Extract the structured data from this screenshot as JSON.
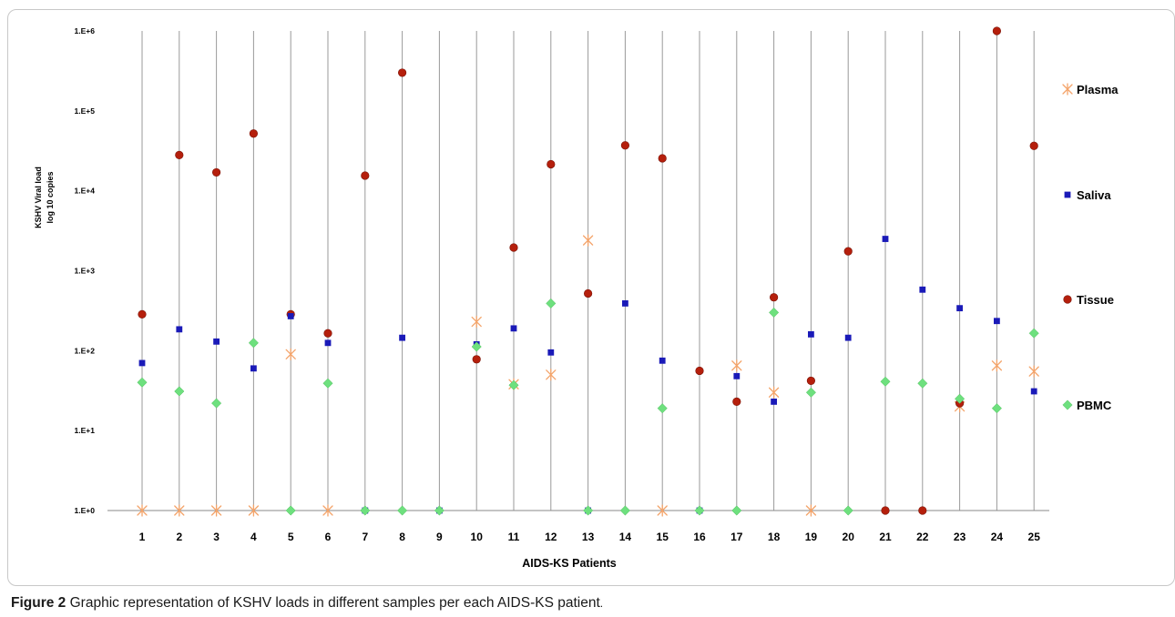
{
  "chart_data": {
    "type": "scatter",
    "xlabel": "AIDS-KS Patients",
    "ylabel": [
      "KSHV Viral load",
      "log 10 copies"
    ],
    "yscale": "log",
    "ylim": [
      1,
      1000000
    ],
    "ytick_labels": [
      "1.E+0",
      "1.E+1",
      "1.E+2",
      "1.E+3",
      "1.E+4",
      "1.E+5",
      "1.E+6"
    ],
    "categories": [
      "1",
      "2",
      "3",
      "4",
      "5",
      "6",
      "7",
      "8",
      "9",
      "10",
      "11",
      "12",
      "13",
      "14",
      "15",
      "16",
      "17",
      "18",
      "19",
      "20",
      "21",
      "22",
      "23",
      "24",
      "25"
    ],
    "grid": "vertical",
    "legend_position": "right",
    "series": [
      {
        "name": "Plasma",
        "marker": "asterisk",
        "color": "#f4a46a",
        "values": [
          1,
          1,
          1,
          1,
          90,
          1,
          null,
          null,
          null,
          230,
          38,
          50,
          2400,
          null,
          1,
          null,
          65,
          30,
          1,
          null,
          null,
          null,
          20,
          65,
          55
        ]
      },
      {
        "name": "Saliva",
        "marker": "square",
        "color": "#1a1ab8",
        "values": [
          70,
          185,
          130,
          60,
          270,
          125,
          1,
          145,
          1,
          120,
          190,
          95,
          1,
          390,
          75,
          1,
          48,
          23,
          160,
          145,
          2500,
          580,
          340,
          235,
          31
        ]
      },
      {
        "name": "Tissue",
        "marker": "circle",
        "color": "#b51f0c",
        "values": [
          285,
          28000,
          17000,
          52000,
          285,
          165,
          15500,
          300000,
          null,
          78,
          1950,
          21500,
          520,
          37000,
          25500,
          56,
          23,
          465,
          42,
          1750,
          1,
          1,
          22,
          1000000,
          36500
        ]
      },
      {
        "name": "PBMC",
        "marker": "diamond",
        "color": "#6ee07e",
        "values": [
          40,
          31,
          22,
          125,
          1,
          39,
          1,
          1,
          1,
          112,
          37,
          390,
          1,
          1,
          19,
          1,
          1,
          300,
          30,
          1,
          41,
          39,
          25,
          19,
          165
        ]
      }
    ]
  },
  "caption": {
    "label": "Figure 2",
    "text": "Graphic representation of KSHV loads in different samples per each AIDS-KS patient",
    "period": "."
  }
}
